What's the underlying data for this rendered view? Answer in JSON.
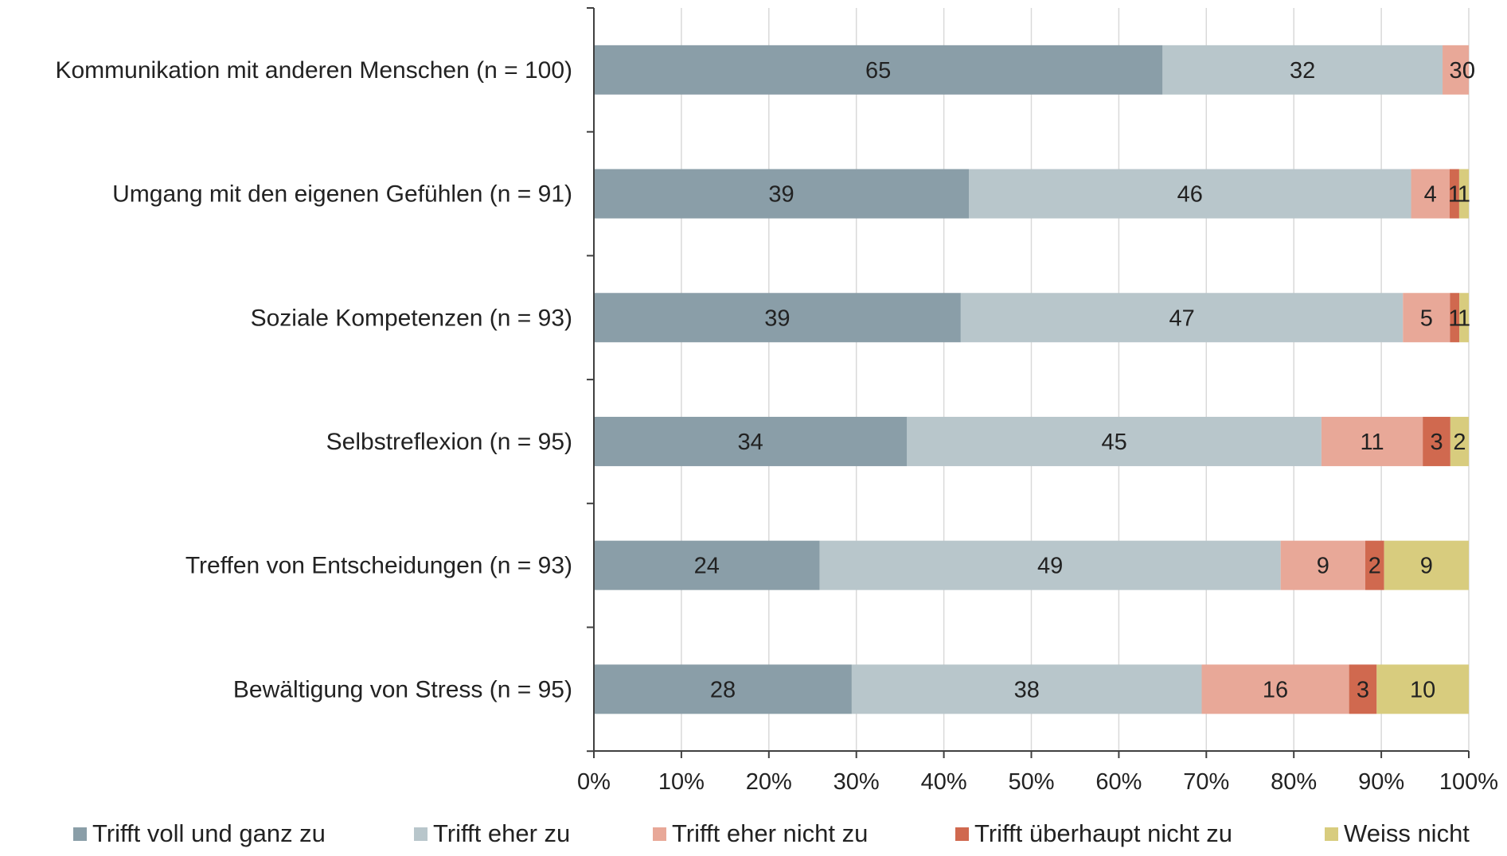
{
  "chart_data": {
    "type": "bar",
    "orientation": "horizontal",
    "stacked": "percent",
    "categories": [
      "Kommunikation mit anderen Menschen (n = 100)",
      "Umgang mit den eigenen Gefühlen (n = 91)",
      "Soziale Kompetenzen (n = 93)",
      "Selbstreflexion (n = 95)",
      "Treffen von Entscheidungen (n = 93)",
      "Bewältigung von Stress (n = 95)"
    ],
    "series": [
      {
        "name": "Trifft voll und ganz zu",
        "color": "#8a9ea8",
        "values": [
          65,
          39,
          39,
          34,
          24,
          28
        ]
      },
      {
        "name": "Trifft eher zu",
        "color": "#b8c6cb",
        "values": [
          32,
          46,
          47,
          45,
          49,
          38
        ]
      },
      {
        "name": "Trifft eher nicht zu",
        "color": "#e8a898",
        "values": [
          3,
          4,
          5,
          11,
          9,
          16
        ]
      },
      {
        "name": "Trifft überhaupt nicht zu",
        "color": "#d0694f",
        "values": [
          0,
          1,
          1,
          3,
          2,
          3
        ]
      },
      {
        "name": "Weiss nicht",
        "color": "#d8cc7e",
        "values": [
          0,
          1,
          1,
          2,
          9,
          10
        ]
      }
    ],
    "xticks": [
      "0%",
      "10%",
      "20%",
      "30%",
      "40%",
      "50%",
      "60%",
      "70%",
      "80%",
      "90%",
      "100%"
    ],
    "xlim": [
      0,
      100
    ],
    "grid": "vertical",
    "legend": "bottom",
    "title": "",
    "xlabel": "",
    "ylabel": ""
  }
}
